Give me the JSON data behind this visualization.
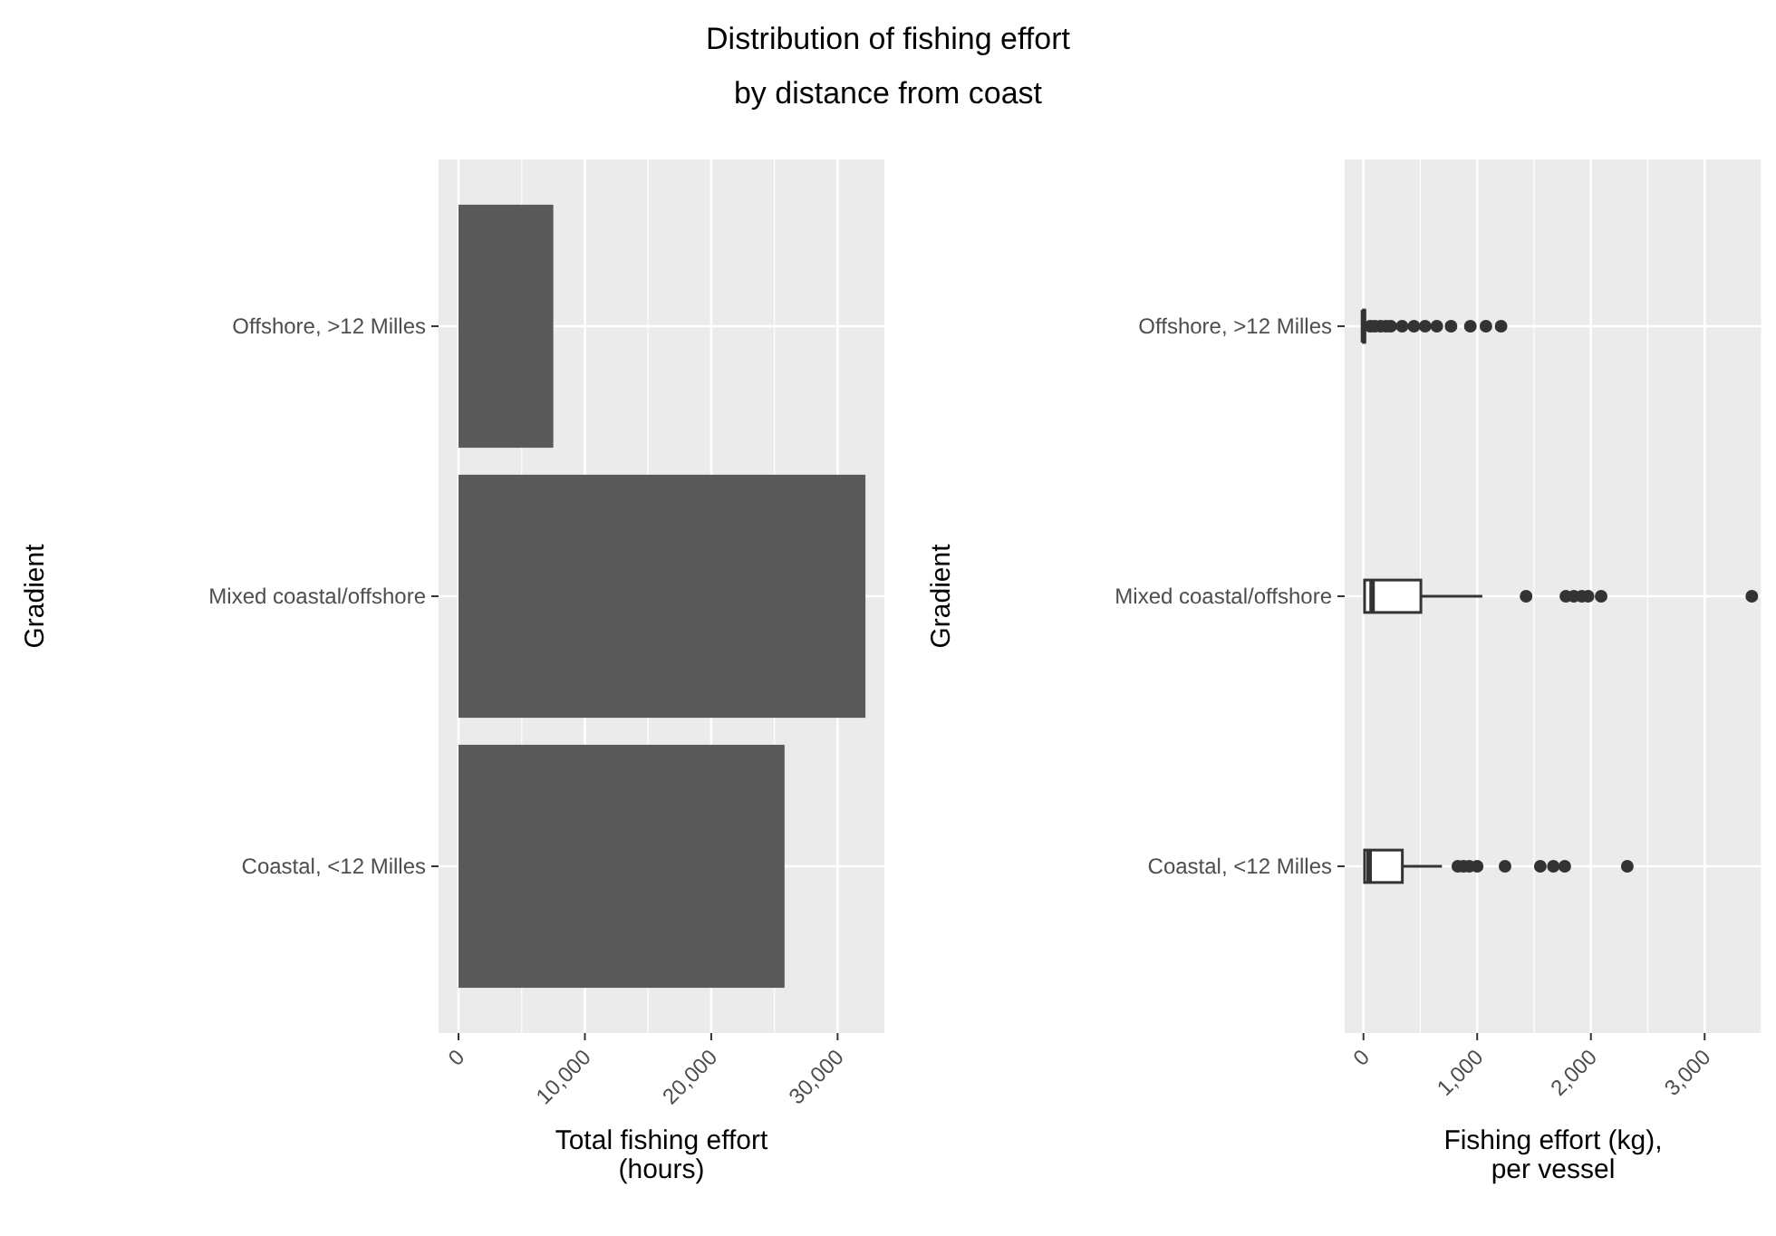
{
  "chart_data": [
    {
      "type": "bar",
      "title": "Distribution of fishing effort\nby distance from coast",
      "orientation": "horizontal",
      "categories": [
        "Offshore, >12 Milles",
        "Mixed coastal/offshore",
        "Coastal, <12 Milles"
      ],
      "values": [
        7500,
        32200,
        25800
      ],
      "color": "#595959",
      "xlim": [
        -1580,
        33700
      ],
      "xticks": [
        0,
        {
          "value": 10000,
          "label": "10,000"
        },
        {
          "value": 20000,
          "label": "20,000"
        },
        {
          "value": 30000,
          "label": "30,000"
        }
      ],
      "xlabel": "Total fishing effort\n(hours)",
      "ylabel": "Gradient",
      "grid": true
    },
    {
      "type": "box",
      "categories": [
        "Offshore, >12 Milles",
        "Mixed coastal/offshore",
        "Coastal, <12 Milles"
      ],
      "orientation": "horizontal",
      "color": "#333333",
      "boxes": [
        {
          "q1": 0,
          "median": 0,
          "q3": 10,
          "high": 25,
          "outliers": [
            60,
            100,
            150,
            200,
            240,
            340,
            444,
            542,
            645,
            770,
            940,
            1077,
            1210
          ]
        },
        {
          "q1": 10,
          "median": 76,
          "q3": 505,
          "high": 1045,
          "outliers": [
            1430,
            1780,
            1850,
            1920,
            1975,
            2090,
            3415
          ]
        },
        {
          "q1": 10,
          "median": 50,
          "q3": 342,
          "high": 690,
          "outliers": [
            830,
            880,
            930,
            1000,
            1245,
            1555,
            1670,
            1770,
            2320
          ]
        }
      ],
      "xlim": [
        -165,
        3500
      ],
      "xticks": [
        0,
        {
          "value": 1000,
          "label": "1,000"
        },
        {
          "value": 2000,
          "label": "2,000"
        },
        {
          "value": 3000,
          "label": "3,000"
        }
      ],
      "xlabel": "Fishing effort (kg),\nper vessel",
      "ylabel": "Gradient",
      "grid": true
    }
  ]
}
